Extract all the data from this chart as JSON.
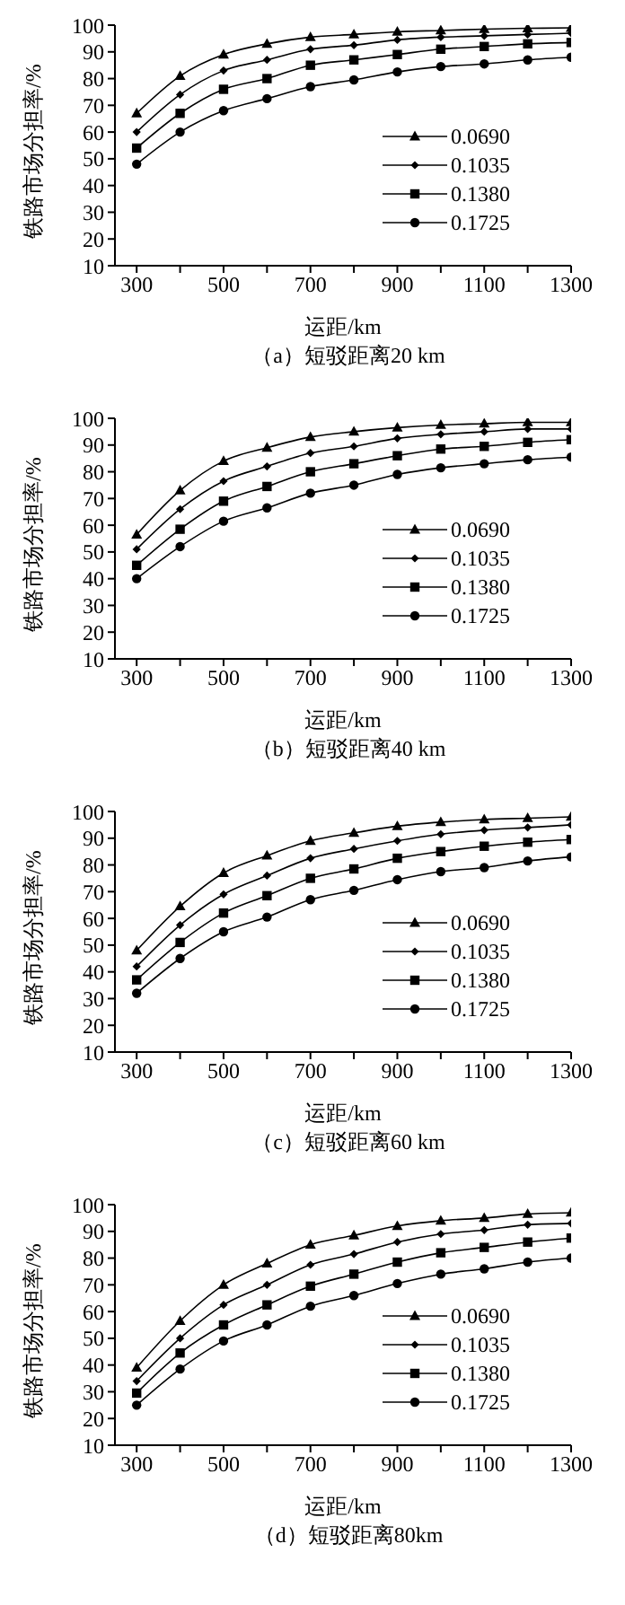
{
  "chart_data": [
    {
      "type": "line",
      "title": "（a）短驳距离20 km",
      "xlabel": "运距/km",
      "ylabel": "铁路市场分担率/%",
      "x": [
        300,
        400,
        500,
        600,
        700,
        800,
        900,
        1000,
        1100,
        1200,
        1300
      ],
      "xlim": [
        250,
        1300
      ],
      "xticks": [
        300,
        {
          "value": 400,
          "label": null
        },
        500,
        {
          "value": 600,
          "label": null
        },
        700,
        {
          "value": 800,
          "label": null
        },
        900,
        {
          "value": 1000,
          "label": null
        },
        1100,
        {
          "value": 1200,
          "label": null
        },
        1300
      ],
      "ylim": [
        10,
        100
      ],
      "yticks": [
        10,
        20,
        30,
        40,
        50,
        60,
        70,
        80,
        90,
        100
      ],
      "grid": false,
      "legend": "right",
      "line_style": "solid",
      "series": [
        {
          "name": "0.0690",
          "color": "#000000",
          "marker": "triangle",
          "values": [
            67,
            81,
            89,
            93,
            95.5,
            96.5,
            97.5,
            98,
            98.5,
            98.8,
            99
          ]
        },
        {
          "name": "0.1035",
          "color": "#000000",
          "marker": "diamond",
          "values": [
            60,
            74,
            83,
            87,
            91,
            92.5,
            94.5,
            95.5,
            96,
            96.5,
            97
          ]
        },
        {
          "name": "0.1380",
          "color": "#000000",
          "marker": "square",
          "values": [
            54,
            67,
            76,
            80,
            85,
            87,
            89,
            91,
            92,
            93,
            93.5
          ]
        },
        {
          "name": "0.1725",
          "color": "#000000",
          "marker": "circle",
          "values": [
            48,
            60,
            68,
            72.5,
            77,
            79.5,
            82.5,
            84.5,
            85.5,
            87,
            88
          ]
        }
      ]
    },
    {
      "type": "line",
      "title": "（b）短驳距离40 km",
      "xlabel": "运距/km",
      "ylabel": "铁路市场分担率/%",
      "x": [
        300,
        400,
        500,
        600,
        700,
        800,
        900,
        1000,
        1100,
        1200,
        1300
      ],
      "xlim": [
        250,
        1300
      ],
      "xticks": [
        300,
        {
          "value": 400,
          "label": null
        },
        500,
        {
          "value": 600,
          "label": null
        },
        700,
        {
          "value": 800,
          "label": null
        },
        900,
        {
          "value": 1000,
          "label": null
        },
        1100,
        {
          "value": 1200,
          "label": null
        },
        1300
      ],
      "ylim": [
        10,
        100
      ],
      "yticks": [
        10,
        20,
        30,
        40,
        50,
        60,
        70,
        80,
        90,
        100
      ],
      "grid": false,
      "legend": "right",
      "line_style": "solid",
      "series": [
        {
          "name": "0.0690",
          "color": "#000000",
          "marker": "triangle",
          "values": [
            56.5,
            73,
            84,
            89,
            93,
            95,
            96.5,
            97.5,
            98,
            98.5,
            98.5
          ]
        },
        {
          "name": "0.1035",
          "color": "#000000",
          "marker": "diamond",
          "values": [
            51,
            66,
            76.5,
            82,
            87,
            89.5,
            92.5,
            94,
            95,
            96,
            96
          ]
        },
        {
          "name": "0.1380",
          "color": "#000000",
          "marker": "square",
          "values": [
            45,
            58.5,
            69,
            74.5,
            80,
            83,
            86,
            88.5,
            89.5,
            91,
            92
          ]
        },
        {
          "name": "0.1725",
          "color": "#000000",
          "marker": "circle",
          "values": [
            40,
            52,
            61.5,
            66.5,
            72,
            75,
            79,
            81.5,
            83,
            84.5,
            85.5
          ]
        }
      ]
    },
    {
      "type": "line",
      "title": "（c）短驳距离60 km",
      "xlabel": "运距/km",
      "ylabel": "铁路市场分担率/%",
      "x": [
        300,
        400,
        500,
        600,
        700,
        800,
        900,
        1000,
        1100,
        1200,
        1300
      ],
      "xlim": [
        250,
        1300
      ],
      "xticks": [
        300,
        {
          "value": 400,
          "label": null
        },
        500,
        {
          "value": 600,
          "label": null
        },
        700,
        {
          "value": 800,
          "label": null
        },
        900,
        {
          "value": 1000,
          "label": null
        },
        1100,
        {
          "value": 1200,
          "label": null
        },
        1300
      ],
      "ylim": [
        10,
        100
      ],
      "yticks": [
        10,
        20,
        30,
        40,
        50,
        60,
        70,
        80,
        90,
        100
      ],
      "grid": false,
      "legend": "right",
      "line_style": "solid",
      "series": [
        {
          "name": "0.0690",
          "color": "#000000",
          "marker": "triangle",
          "values": [
            48,
            64.5,
            77,
            83.5,
            89,
            92,
            94.5,
            96,
            97,
            97.5,
            98
          ]
        },
        {
          "name": "0.1035",
          "color": "#000000",
          "marker": "diamond",
          "values": [
            42,
            57.5,
            69,
            76,
            82.5,
            86,
            89,
            91.5,
            93,
            94,
            95
          ]
        },
        {
          "name": "0.1380",
          "color": "#000000",
          "marker": "square",
          "values": [
            37,
            51,
            62,
            68.5,
            75,
            78.5,
            82.5,
            85,
            87,
            88.5,
            89.5
          ]
        },
        {
          "name": "0.1725",
          "color": "#000000",
          "marker": "circle",
          "values": [
            32,
            45,
            55,
            60.5,
            67,
            70.5,
            74.5,
            77.5,
            79,
            81.5,
            83
          ]
        }
      ]
    },
    {
      "type": "line",
      "title": "（d）短驳距离80km",
      "xlabel": "运距/km",
      "ylabel": "铁路市场分担率/%",
      "x": [
        300,
        400,
        500,
        600,
        700,
        800,
        900,
        1000,
        1100,
        1200,
        1300
      ],
      "xlim": [
        250,
        1300
      ],
      "xticks": [
        300,
        {
          "value": 400,
          "label": null
        },
        500,
        {
          "value": 600,
          "label": null
        },
        700,
        {
          "value": 800,
          "label": null
        },
        900,
        {
          "value": 1000,
          "label": null
        },
        1100,
        {
          "value": 1200,
          "label": null
        },
        1300
      ],
      "ylim": [
        10,
        100
      ],
      "yticks": [
        10,
        20,
        30,
        40,
        50,
        60,
        70,
        80,
        90,
        100
      ],
      "grid": false,
      "legend": "right",
      "line_style": "solid",
      "series": [
        {
          "name": "0.0690",
          "color": "#000000",
          "marker": "triangle",
          "values": [
            39,
            56.5,
            70,
            78,
            85,
            88.5,
            92,
            94,
            95,
            96.5,
            97
          ]
        },
        {
          "name": "0.1035",
          "color": "#000000",
          "marker": "diamond",
          "values": [
            34,
            50,
            62.5,
            70,
            77.5,
            81.5,
            86,
            89,
            90.5,
            92.5,
            93
          ]
        },
        {
          "name": "0.1380",
          "color": "#000000",
          "marker": "square",
          "values": [
            29.5,
            44.5,
            55,
            62.5,
            69.5,
            74,
            78.5,
            82,
            84,
            86,
            87.5
          ]
        },
        {
          "name": "0.1725",
          "color": "#000000",
          "marker": "circle",
          "values": [
            25,
            38.5,
            49,
            55,
            62,
            66,
            70.5,
            74,
            76,
            78.5,
            80
          ]
        }
      ]
    }
  ]
}
